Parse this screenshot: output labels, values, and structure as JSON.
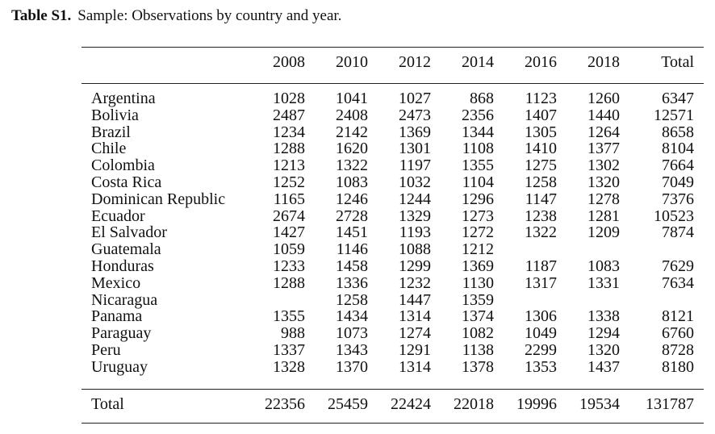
{
  "caption": {
    "label": "Table S1.",
    "text": "Sample: Observations by country and year."
  },
  "table": {
    "headers": [
      "",
      "2008",
      "2010",
      "2012",
      "2014",
      "2016",
      "2018",
      "Total"
    ],
    "rows": [
      {
        "country": "Argentina",
        "values": [
          "1028",
          "1041",
          "1027",
          "868",
          "1123",
          "1260",
          "6347"
        ]
      },
      {
        "country": "Bolivia",
        "values": [
          "2487",
          "2408",
          "2473",
          "2356",
          "1407",
          "1440",
          "12571"
        ]
      },
      {
        "country": "Brazil",
        "values": [
          "1234",
          "2142",
          "1369",
          "1344",
          "1305",
          "1264",
          "8658"
        ]
      },
      {
        "country": "Chile",
        "values": [
          "1288",
          "1620",
          "1301",
          "1108",
          "1410",
          "1377",
          "8104"
        ]
      },
      {
        "country": "Colombia",
        "values": [
          "1213",
          "1322",
          "1197",
          "1355",
          "1275",
          "1302",
          "7664"
        ]
      },
      {
        "country": "Costa Rica",
        "values": [
          "1252",
          "1083",
          "1032",
          "1104",
          "1258",
          "1320",
          "7049"
        ]
      },
      {
        "country": "Dominican Republic",
        "values": [
          "1165",
          "1246",
          "1244",
          "1296",
          "1147",
          "1278",
          "7376"
        ]
      },
      {
        "country": "Ecuador",
        "values": [
          "2674",
          "2728",
          "1329",
          "1273",
          "1238",
          "1281",
          "10523"
        ]
      },
      {
        "country": "El Salvador",
        "values": [
          "1427",
          "1451",
          "1193",
          "1272",
          "1322",
          "1209",
          "7874"
        ]
      },
      {
        "country": "Guatemala",
        "values": [
          "1059",
          "1146",
          "1088",
          "1212",
          "",
          "",
          ""
        ]
      },
      {
        "country": "Honduras",
        "values": [
          "1233",
          "1458",
          "1299",
          "1369",
          "1187",
          "1083",
          "7629"
        ]
      },
      {
        "country": "Mexico",
        "values": [
          "1288",
          "1336",
          "1232",
          "1130",
          "1317",
          "1331",
          "7634"
        ]
      },
      {
        "country": "Nicaragua",
        "values": [
          "",
          "1258",
          "1447",
          "1359",
          "",
          "",
          ""
        ]
      },
      {
        "country": "Panama",
        "values": [
          "1355",
          "1434",
          "1314",
          "1374",
          "1306",
          "1338",
          "8121"
        ]
      },
      {
        "country": "Paraguay",
        "values": [
          "988",
          "1073",
          "1274",
          "1082",
          "1049",
          "1294",
          "6760"
        ]
      },
      {
        "country": "Peru",
        "values": [
          "1337",
          "1343",
          "1291",
          "1138",
          "2299",
          "1320",
          "8728"
        ]
      },
      {
        "country": "Uruguay",
        "values": [
          "1328",
          "1370",
          "1314",
          "1378",
          "1353",
          "1437",
          "8180"
        ]
      }
    ],
    "total_row": {
      "label": "Total",
      "values": [
        "22356",
        "25459",
        "22424",
        "22018",
        "19996",
        "19534",
        "131787"
      ]
    }
  }
}
